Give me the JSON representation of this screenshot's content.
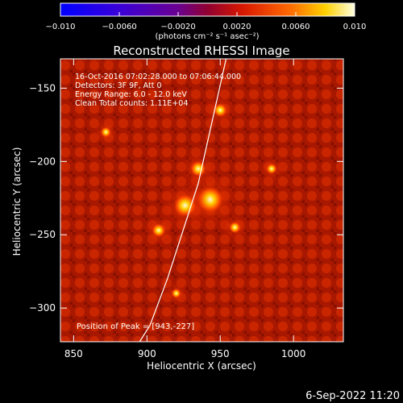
{
  "chart_data": {
    "type": "heatmap",
    "title": "Reconstructed RHESSI Image",
    "xlabel": "Heliocentric X (arcsec)",
    "ylabel": "Heliocentric Y (arcsec)",
    "xlim": [
      841,
      1034
    ],
    "ylim": [
      -323,
      -130
    ],
    "xticks": [
      850,
      900,
      950,
      1000
    ],
    "yticks": [
      -150,
      -200,
      -250,
      -300
    ],
    "colorbar": {
      "label": "(photons cm⁻² s⁻¹ asec⁻²)",
      "range": [
        -0.01,
        0.01
      ],
      "ticks": [
        "−0.010",
        "−0.0060",
        "−0.0020",
        "0.0020",
        "0.0060",
        "0.010"
      ]
    },
    "annotations": [
      "16-Oct-2016 07:02:28.000 to 07:06:44.000",
      "Detectors: 3F 9F, Att 0",
      "Energy Range: 6.0 - 12.0 keV",
      "Clean    Total counts: 1.11E+04"
    ],
    "peak_label": "Position of Peak = [943,-227]",
    "peak": [
      943,
      -227
    ],
    "sources": [
      {
        "x": 943,
        "y": -226,
        "intensity": 1.0
      },
      {
        "x": 926,
        "y": -230,
        "intensity": 0.8
      },
      {
        "x": 935,
        "y": -205,
        "intensity": 0.45
      },
      {
        "x": 950,
        "y": -165,
        "intensity": 0.35
      },
      {
        "x": 908,
        "y": -247,
        "intensity": 0.35
      },
      {
        "x": 960,
        "y": -245,
        "intensity": 0.25
      },
      {
        "x": 872,
        "y": -180,
        "intensity": 0.2
      },
      {
        "x": 985,
        "y": -205,
        "intensity": 0.2
      },
      {
        "x": 920,
        "y": -290,
        "intensity": 0.15
      }
    ],
    "limb_curve": [
      [
        954,
        -130
      ],
      [
        935,
        -215
      ],
      [
        914,
        -280
      ],
      [
        902,
        -312
      ],
      [
        895,
        -323
      ]
    ]
  },
  "footer": {
    "timestamp": "6-Sep-2022 11:20"
  }
}
